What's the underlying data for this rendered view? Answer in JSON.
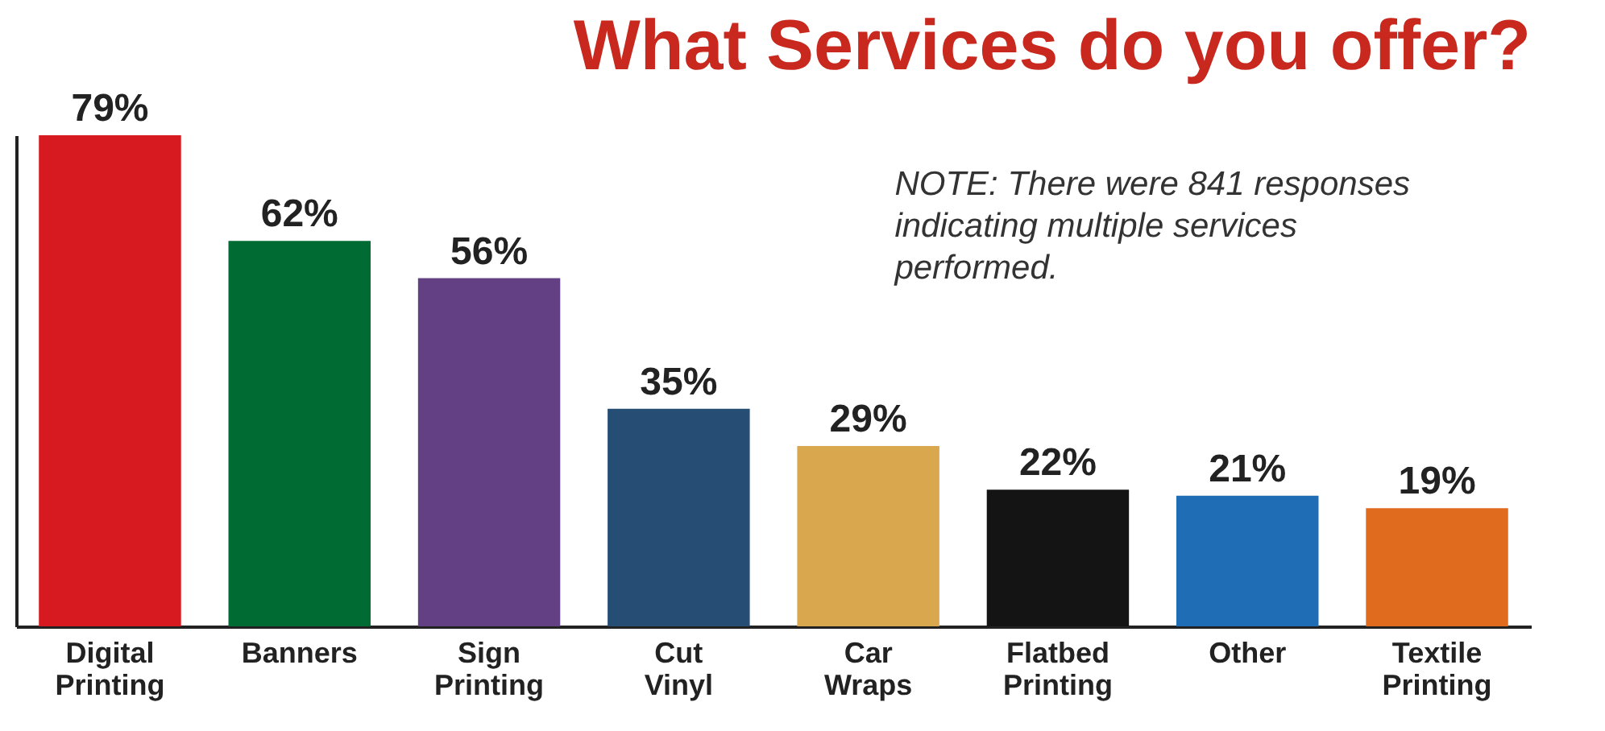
{
  "chart_data": {
    "type": "bar",
    "title": "What Services do you offer?",
    "categories": [
      "Digital Printing",
      "Banners",
      "Sign Printing",
      "Cut Vinyl",
      "Car Wraps",
      "Flatbed Printing",
      "Other",
      "Textile Printing"
    ],
    "values": [
      79,
      62,
      56,
      35,
      29,
      22,
      21,
      19
    ],
    "value_labels": [
      "79%",
      "62%",
      "56%",
      "35%",
      "29%",
      "22%",
      "21%",
      "19%"
    ],
    "colors": [
      "#d71920",
      "#006b33",
      "#634083",
      "#264d73",
      "#d9a84e",
      "#141414",
      "#1f6db5",
      "#e06a1e"
    ],
    "annotations": [
      "NOTE: There were 841 responses indicating multiple services performed."
    ],
    "tick_labels": "x"
  }
}
